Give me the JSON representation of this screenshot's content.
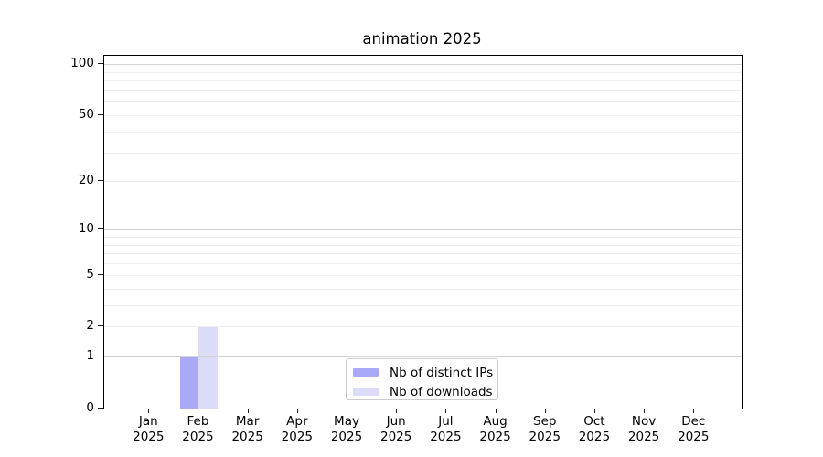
{
  "chart_data": {
    "type": "bar",
    "title": "animation 2025",
    "categories": [
      "Jan 2025",
      "Feb 2025",
      "Mar 2025",
      "Apr 2025",
      "May 2025",
      "Jun 2025",
      "Jul 2025",
      "Aug 2025",
      "Sep 2025",
      "Oct 2025",
      "Nov 2025",
      "Dec 2025"
    ],
    "series": [
      {
        "name": "Nb of distinct IPs",
        "color": "#a9a9f7",
        "values": [
          0,
          1,
          0,
          0,
          0,
          0,
          0,
          0,
          0,
          0,
          0,
          0
        ]
      },
      {
        "name": "Nb of downloads",
        "color": "#dcdcf9",
        "values": [
          0,
          2,
          0,
          0,
          0,
          0,
          0,
          0,
          0,
          0,
          0,
          0
        ]
      }
    ],
    "xlabel": "",
    "ylabel": "",
    "y_axis": {
      "scale": "log10(1+v)",
      "tick_values": [
        0,
        1,
        2,
        5,
        10,
        20,
        50,
        100
      ],
      "tick_labels": [
        "0",
        "1",
        "2",
        "5",
        "10",
        "20",
        "50",
        "100"
      ],
      "ylim": [
        0,
        112
      ],
      "minor_grid_values": [
        2,
        3,
        4,
        5,
        6,
        7,
        8,
        9,
        20,
        30,
        40,
        50,
        60,
        70,
        80,
        90
      ],
      "major_grid_values": [
        1,
        10,
        100
      ]
    },
    "grid": true,
    "legend_position": "lower center",
    "colors": {
      "major_grid": "#d3d3d3",
      "minor_grid": "#efefef",
      "spine": "#000000",
      "bar_ips": "#a9a9f7",
      "bar_downloads": "#dcdcf9"
    }
  }
}
